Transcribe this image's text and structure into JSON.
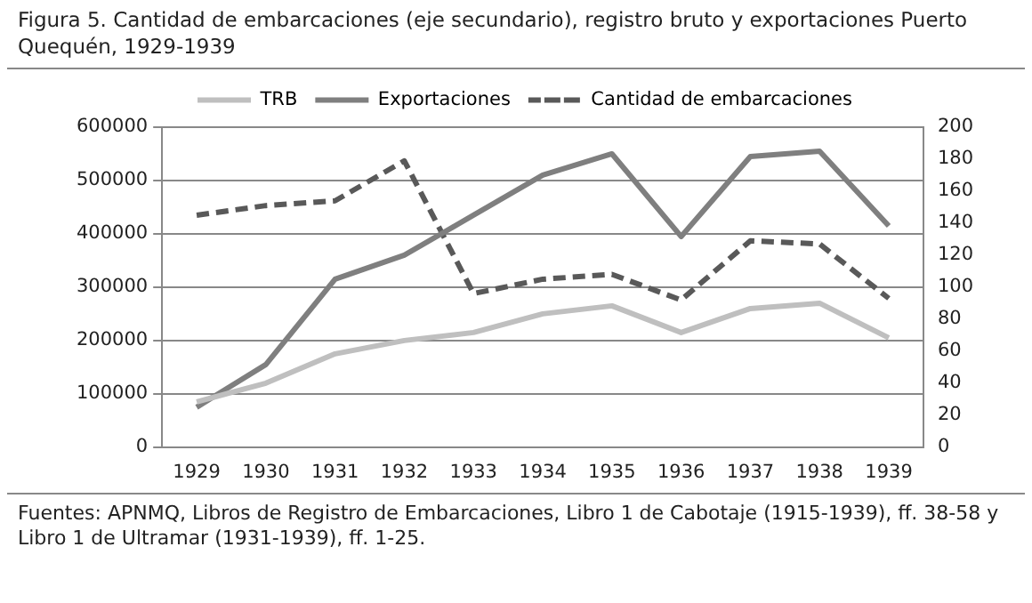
{
  "chart_data": {
    "type": "line",
    "title": "Figura 5. Cantidad de embarcaciones (eje secundario), registro bruto y exportaciones Puerto Quequén, 1929-1939",
    "categories": [
      "1929",
      "1930",
      "1931",
      "1932",
      "1933",
      "1934",
      "1935",
      "1936",
      "1937",
      "1938",
      "1939"
    ],
    "series": [
      {
        "name": "TRB",
        "color": "#bfbfbf",
        "line_style": "solid",
        "values": [
          85000,
          120000,
          175000,
          200000,
          215000,
          250000,
          265000,
          215000,
          260000,
          270000,
          205000
        ]
      },
      {
        "name": "Exportaciones",
        "color": "#7f7f7f",
        "line_style": "solid",
        "values": [
          75000,
          155000,
          315000,
          360000,
          435000,
          510000,
          550000,
          395000,
          545000,
          555000,
          415000
        ]
      },
      {
        "name": "Cantidad de embarcaciones",
        "color": "#595959",
        "line_style": "dashed",
        "axis": "y2",
        "values": [
          145,
          151,
          154,
          179,
          96,
          105,
          108,
          92,
          129,
          127,
          93
        ]
      }
    ],
    "ylim": [
      0,
      600000
    ],
    "yticks": [
      0,
      100000,
      200000,
      300000,
      400000,
      500000,
      600000
    ],
    "y2lim": [
      0,
      200
    ],
    "y2ticks": [
      0,
      20,
      40,
      60,
      80,
      100,
      120,
      140,
      160,
      180,
      200
    ],
    "grid": "y",
    "legend": "top",
    "marker": "none",
    "annotations": [
      "Fuentes: APNMQ, Libros de Registro de Embarcaciones, Libro 1 de Cabotaje (1915-1939), ff. 38-58 y Libro 1 de Ultramar (1931-1939), ff. 1-25."
    ]
  }
}
